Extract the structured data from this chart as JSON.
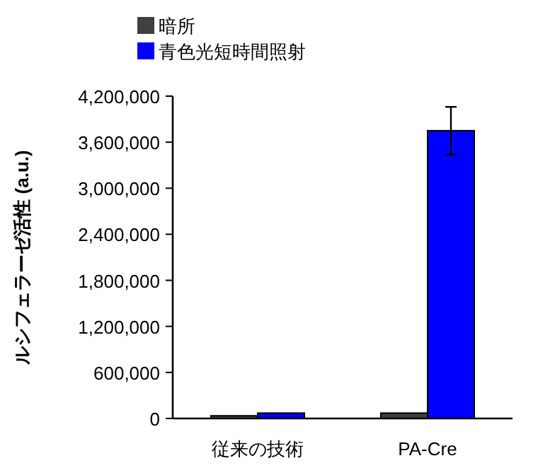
{
  "chart_data": {
    "type": "bar",
    "ylabel": "ルシフェラーゼ活性 (a.u.)",
    "categories": [
      "従来の技術",
      "PA-Cre"
    ],
    "series": [
      {
        "name": "暗所",
        "color": "#404040",
        "values": [
          35000,
          70000
        ]
      },
      {
        "name": "青色光短時間照射",
        "color": "#0000ff",
        "values": [
          70000,
          3750000
        ],
        "errors": [
          null,
          310000
        ]
      }
    ],
    "ylim": [
      0,
      4200000
    ],
    "yticks": [
      {
        "value": 0,
        "label": "0"
      },
      {
        "value": 600000,
        "label": "600,000"
      },
      {
        "value": 1200000,
        "label": "1,200,000"
      },
      {
        "value": 1800000,
        "label": "1,800,000"
      },
      {
        "value": 2400000,
        "label": "2,400,000"
      },
      {
        "value": 3000000,
        "label": "3,000,000"
      },
      {
        "value": 3600000,
        "label": "3,600,000"
      },
      {
        "value": 4200000,
        "label": "4,200,000"
      }
    ],
    "legend": "top",
    "grid": false
  }
}
